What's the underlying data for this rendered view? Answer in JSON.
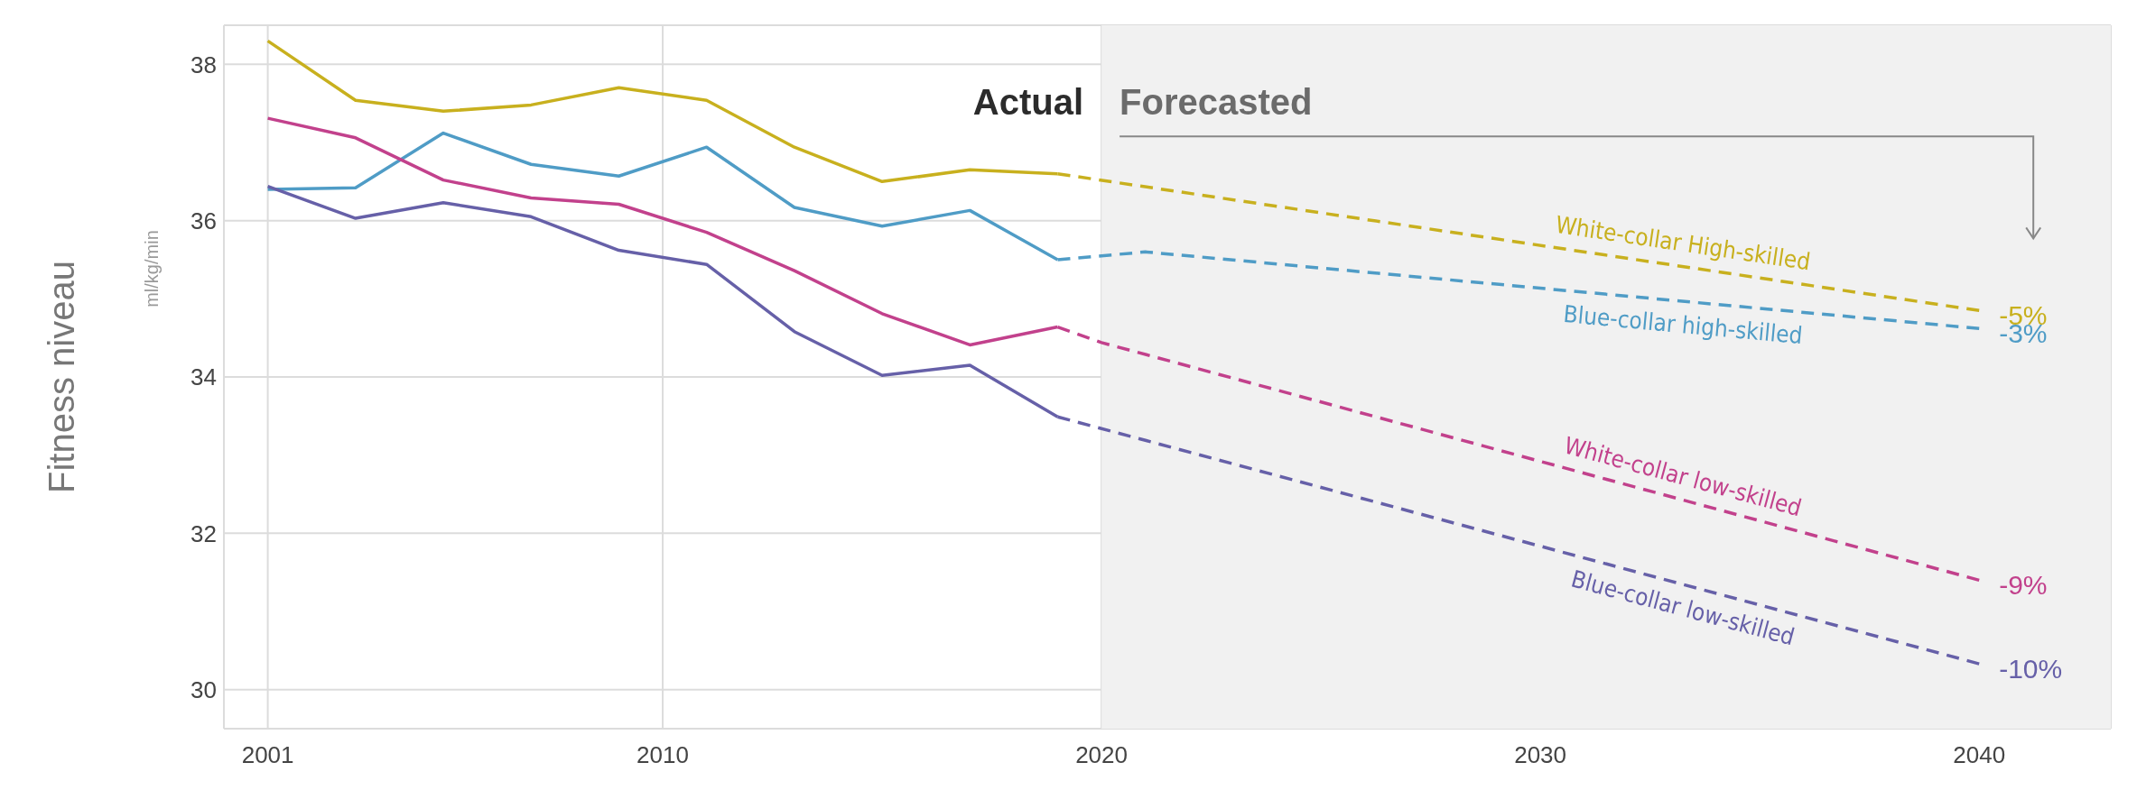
{
  "chart_data": {
    "type": "line",
    "ylabel": "Fitness niveau",
    "xlim": [
      2000,
      2043
    ],
    "ylim": [
      29.5,
      38.5
    ],
    "xticks": [
      2001,
      2010,
      2020,
      2030,
      2040
    ],
    "yticks": [
      30,
      32,
      34,
      36,
      38
    ],
    "grid": true,
    "legend": false,
    "marker": "none",
    "line_style": "solid",
    "x": [
      2001,
      2003,
      2005,
      2007,
      2009,
      2011,
      2013,
      2015,
      2017,
      2019
    ],
    "series": [
      {
        "color": "#c8b01e",
        "values": [
          38.3,
          37.54,
          37.4,
          37.48,
          37.7,
          37.54,
          36.94,
          36.5,
          36.65,
          36.6
        ]
      },
      {
        "color": "#4f9cc6",
        "values": [
          36.4,
          36.42,
          37.12,
          36.72,
          36.57,
          36.94,
          36.17,
          35.93,
          36.13,
          35.5
        ]
      },
      {
        "color": "#c2418c",
        "values": [
          37.31,
          37.06,
          36.52,
          36.29,
          36.21,
          35.85,
          35.36,
          34.81,
          34.41,
          34.64
        ]
      },
      {
        "color": "#6660a8",
        "values": [
          36.44,
          36.03,
          36.23,
          36.05,
          35.62,
          35.44,
          34.58,
          34.02,
          34.15,
          33.49
        ]
      },
      {
        "name": "White-collar High-skilled",
        "color": "#c8b01e",
        "line_style": "dashed",
        "x": [
          2019,
          2040
        ],
        "values": [
          36.6,
          34.85
        ]
      },
      {
        "name": "Blue-collar high-skilled",
        "color": "#4f9cc6",
        "line_style": "dashed",
        "x": [
          2019,
          2021,
          2040
        ],
        "values": [
          35.5,
          35.6,
          34.62
        ]
      },
      {
        "name": "White-collar low-skilled",
        "color": "#c2418c",
        "line_style": "dashed",
        "x": [
          2019,
          2020,
          2040
        ],
        "values": [
          34.64,
          34.44,
          31.4
        ]
      },
      {
        "name": "Blue-collar low-skilled",
        "color": "#6660a8",
        "line_style": "dashed",
        "x": [
          2019,
          2040
        ],
        "values": [
          33.49,
          30.33
        ]
      }
    ],
    "bands": [
      {
        "axis": "x",
        "from": 2020,
        "to": 2043,
        "color": "#f1f1f1"
      }
    ],
    "annotations": [
      "ml/kg/min",
      "Actual",
      "Forecasted",
      "-5%",
      "-3%",
      "-9%",
      "-10%"
    ]
  }
}
